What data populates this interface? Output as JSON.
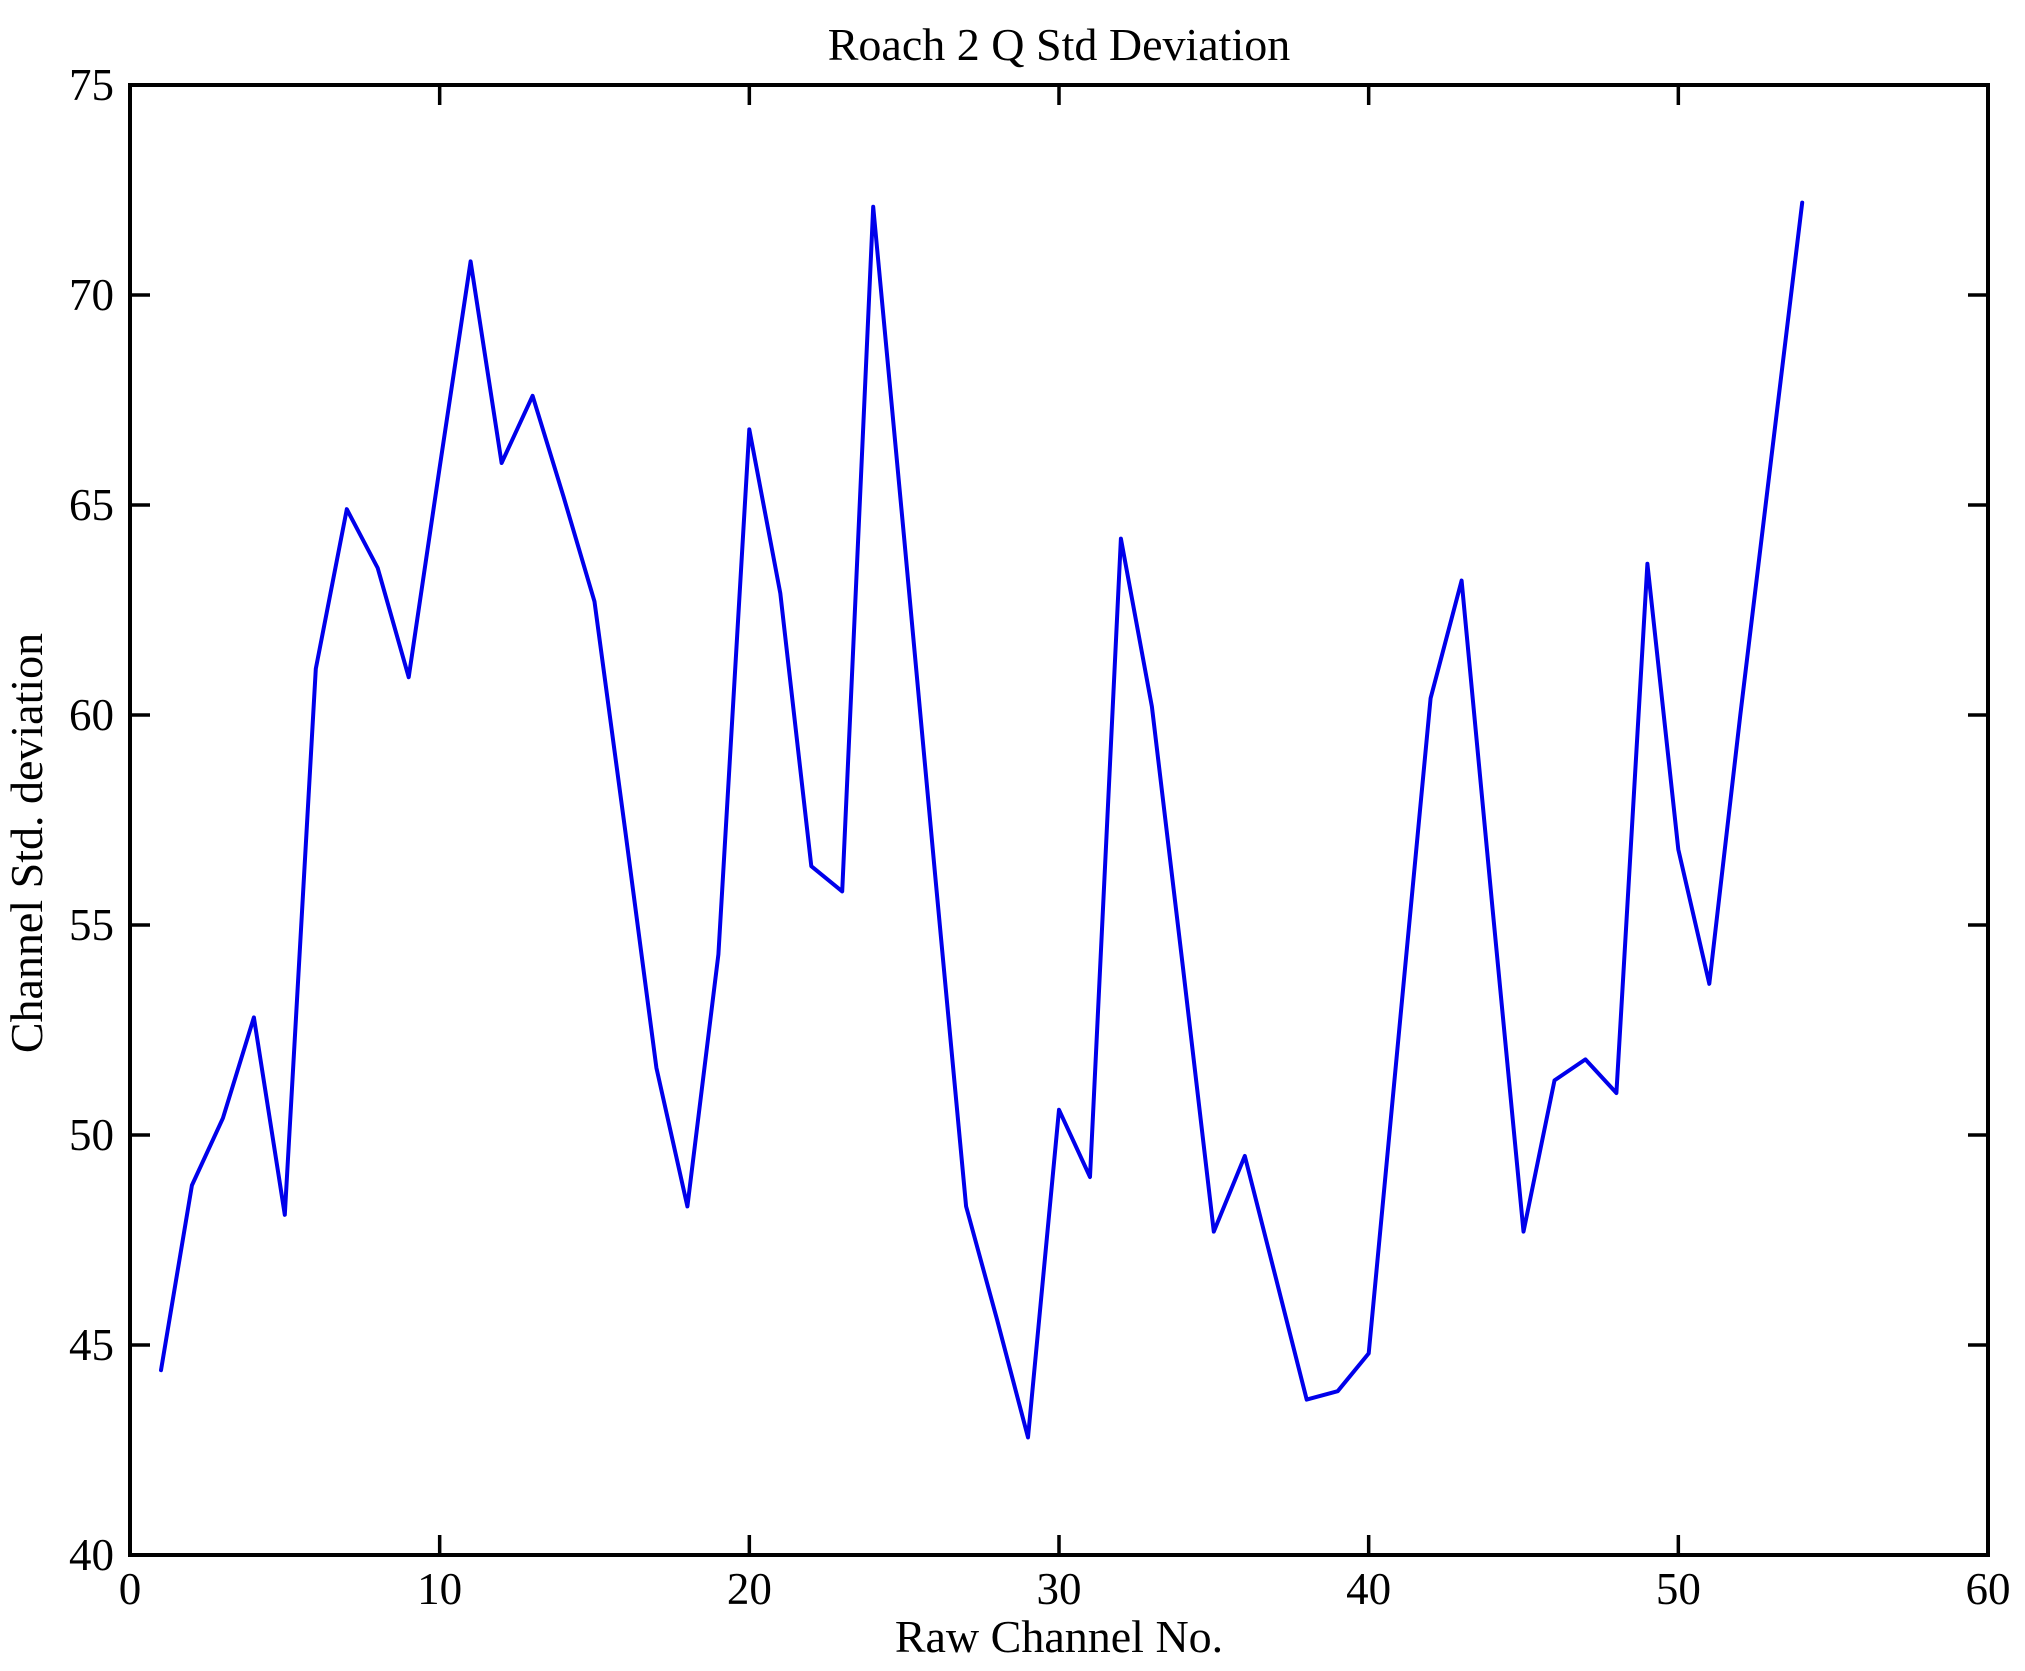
{
  "window_title": "Roach 2 Q Std Deviation",
  "chart_data": {
    "type": "line",
    "title": "Roach 2 Q Std Deviation",
    "xlabel": "Raw Channel No.",
    "ylabel": "Channel Std. deviation",
    "xlim": [
      0,
      60
    ],
    "ylim": [
      40,
      75
    ],
    "xticks": [
      0,
      10,
      20,
      30,
      40,
      50,
      60
    ],
    "yticks": [
      40,
      45,
      50,
      55,
      60,
      65,
      70,
      75
    ],
    "grid": false,
    "legend": null,
    "line_color": "#0000eb",
    "x": [
      1,
      2,
      3,
      4,
      5,
      6,
      7,
      8,
      9,
      10,
      11,
      12,
      13,
      14,
      15,
      16,
      17,
      18,
      19,
      20,
      21,
      22,
      23,
      24,
      25,
      26,
      27,
      28,
      29,
      30,
      31,
      32,
      33,
      34,
      35,
      36,
      37,
      38,
      39,
      40,
      41,
      42,
      43,
      44,
      45,
      46,
      47,
      48,
      49,
      50,
      51,
      52,
      53,
      54
    ],
    "y": [
      44.4,
      48.8,
      50.4,
      52.8,
      48.1,
      61.1,
      64.9,
      63.5,
      60.9,
      65.9,
      70.8,
      66.0,
      67.6,
      65.2,
      62.7,
      57.2,
      51.6,
      48.3,
      54.3,
      66.8,
      62.9,
      56.4,
      55.8,
      72.1,
      64.2,
      56.2,
      48.3,
      45.6,
      42.8,
      50.6,
      49.0,
      64.2,
      60.2,
      54.0,
      47.7,
      49.5,
      46.6,
      43.7,
      43.9,
      44.8,
      52.6,
      60.4,
      63.2,
      55.4,
      47.7,
      51.3,
      51.8,
      51.0,
      63.6,
      56.8,
      53.6,
      60.0,
      66.1,
      72.2
    ]
  }
}
